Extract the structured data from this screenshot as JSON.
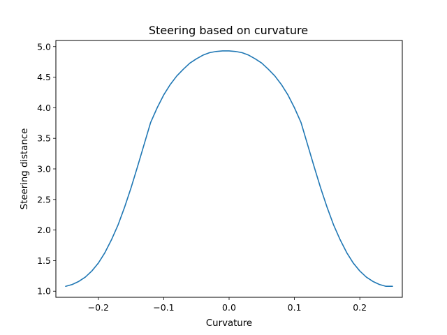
{
  "chart_data": {
    "type": "line",
    "title": "Steering based on curvature",
    "xlabel": "Curvature",
    "ylabel": "Steering distance",
    "xlim": [
      -0.265,
      0.265
    ],
    "ylim": [
      0.9,
      5.1
    ],
    "xticks": [
      -0.2,
      -0.1,
      0.0,
      0.1,
      0.2
    ],
    "xtick_labels": [
      "−0.2",
      "−0.1",
      "0.0",
      "0.1",
      "0.2"
    ],
    "yticks": [
      1.0,
      1.5,
      2.0,
      2.5,
      3.0,
      3.5,
      4.0,
      4.5,
      5.0
    ],
    "ytick_labels": [
      "1.0",
      "1.5",
      "2.0",
      "2.5",
      "3.0",
      "3.5",
      "4.0",
      "4.5",
      "5.0"
    ],
    "grid": false,
    "series": [
      {
        "color": "#1f77b4",
        "x": [
          -0.25,
          -0.24,
          -0.23,
          -0.22,
          -0.21,
          -0.2,
          -0.19,
          -0.18,
          -0.17,
          -0.16,
          -0.15,
          -0.14,
          -0.13,
          -0.12,
          -0.11,
          -0.1,
          -0.09,
          -0.08,
          -0.07,
          -0.06,
          -0.05,
          -0.04,
          -0.03,
          -0.02,
          -0.01,
          0.0,
          0.01,
          0.02,
          0.03,
          0.04,
          0.05,
          0.06,
          0.07,
          0.08,
          0.09,
          0.1,
          0.11,
          0.12,
          0.13,
          0.14,
          0.15,
          0.16,
          0.17,
          0.18,
          0.19,
          0.2,
          0.21,
          0.22,
          0.23,
          0.24,
          0.25
        ],
        "y": [
          1.08,
          1.11,
          1.16,
          1.23,
          1.33,
          1.46,
          1.63,
          1.84,
          2.08,
          2.37,
          2.69,
          3.04,
          3.4,
          3.76,
          4.0,
          4.21,
          4.38,
          4.52,
          4.63,
          4.73,
          4.8,
          4.86,
          4.9,
          4.92,
          4.93,
          4.93,
          4.92,
          4.9,
          4.86,
          4.8,
          4.73,
          4.63,
          4.52,
          4.38,
          4.21,
          4.0,
          3.76,
          3.4,
          3.04,
          2.69,
          2.37,
          2.08,
          1.84,
          1.63,
          1.46,
          1.33,
          1.23,
          1.16,
          1.11,
          1.08,
          1.08
        ]
      }
    ]
  }
}
